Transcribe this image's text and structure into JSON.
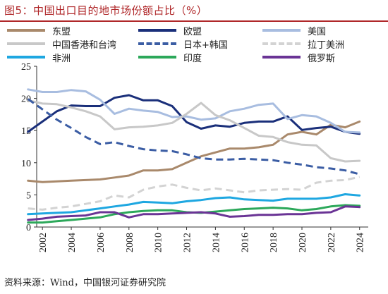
{
  "title": "图5：中国出口目的地市场份额占比（%）",
  "source": "资料来源：Wind，中国银河证券研究院",
  "chart_data": {
    "type": "line",
    "title": "图5：中国出口目的地市场份额占比（%）",
    "xlabel": "",
    "ylabel": "",
    "ylim": [
      0,
      25
    ],
    "yticks": [
      0,
      5,
      10,
      15,
      20,
      25
    ],
    "xticks": [
      2002,
      2004,
      2006,
      2008,
      2010,
      2012,
      2014,
      2016,
      2018,
      2020,
      2022,
      2024
    ],
    "grid": false,
    "legend_position": "top",
    "x": [
      2001,
      2002,
      2003,
      2004,
      2005,
      2006,
      2007,
      2008,
      2009,
      2010,
      2011,
      2012,
      2013,
      2014,
      2015,
      2016,
      2017,
      2018,
      2019,
      2020,
      2021,
      2022,
      2023,
      2024
    ],
    "series": [
      {
        "name": "东盟",
        "color": "#a9896b",
        "dashed": false,
        "values": [
          7.2,
          7.0,
          7.1,
          7.2,
          7.3,
          7.4,
          7.7,
          8.0,
          8.8,
          8.8,
          9.0,
          10.0,
          11.0,
          11.6,
          12.2,
          12.2,
          12.4,
          12.8,
          14.4,
          14.8,
          14.4,
          15.9,
          15.5,
          16.4
        ]
      },
      {
        "name": "欧盟",
        "color": "#1a2f7a",
        "dashed": false,
        "values": [
          14.8,
          16.4,
          18.0,
          18.9,
          18.8,
          18.8,
          20.1,
          20.5,
          19.7,
          19.7,
          18.8,
          16.3,
          15.3,
          15.8,
          15.6,
          16.2,
          16.4,
          16.4,
          17.2,
          15.1,
          15.4,
          15.6,
          14.8,
          14.5
        ]
      },
      {
        "name": "美国",
        "color": "#a8bde0",
        "dashed": false,
        "values": [
          21.4,
          21.0,
          21.0,
          21.3,
          21.1,
          19.8,
          17.6,
          18.4,
          18.1,
          17.9,
          17.1,
          17.2,
          16.7,
          16.9,
          18.0,
          18.4,
          19.0,
          19.2,
          16.8,
          17.4,
          17.2,
          16.2,
          14.8,
          14.7
        ]
      },
      {
        "name": "中国香港和台湾",
        "color": "#c8c8c8",
        "dashed": false,
        "values": [
          19.7,
          19.2,
          19.1,
          18.6,
          18.0,
          17.2,
          15.2,
          15.5,
          15.6,
          15.8,
          16.2,
          17.6,
          19.3,
          17.4,
          16.6,
          15.4,
          14.2,
          14.0,
          13.2,
          12.8,
          12.7,
          10.7,
          10.2,
          10.3
        ]
      },
      {
        "name": "日本+韩国",
        "color": "#3b5da4",
        "dashed": true,
        "values": [
          19.9,
          18.3,
          16.7,
          15.4,
          14.0,
          12.9,
          13.2,
          12.6,
          12.1,
          11.9,
          11.8,
          11.3,
          10.7,
          10.5,
          10.5,
          10.6,
          10.5,
          10.4,
          10.0,
          9.7,
          9.3,
          9.1,
          8.8,
          8.2
        ]
      },
      {
        "name": "拉丁美洲",
        "color": "#d3d3d3",
        "dashed": true,
        "values": [
          2.9,
          2.7,
          3.0,
          3.2,
          3.6,
          4.0,
          4.9,
          4.6,
          5.8,
          6.3,
          6.6,
          6.1,
          5.7,
          6.0,
          5.7,
          5.4,
          5.7,
          5.8,
          5.9,
          5.8,
          6.9,
          7.2,
          7.3,
          7.8
        ]
      },
      {
        "name": "非洲",
        "color": "#1ea7e1",
        "dashed": false,
        "values": [
          2.0,
          2.1,
          2.2,
          2.3,
          2.6,
          2.9,
          3.2,
          3.5,
          3.9,
          3.8,
          3.7,
          4.0,
          4.2,
          4.5,
          4.6,
          4.3,
          4.2,
          4.1,
          4.4,
          4.4,
          4.4,
          4.6,
          5.1,
          4.9
        ]
      },
      {
        "name": "印度",
        "color": "#2ca85a",
        "dashed": false,
        "values": [
          0.7,
          0.7,
          0.9,
          1.1,
          1.3,
          1.5,
          2.0,
          2.3,
          2.5,
          2.6,
          2.6,
          2.3,
          2.2,
          2.4,
          2.6,
          2.8,
          2.9,
          3.0,
          2.9,
          2.6,
          2.8,
          3.2,
          3.4,
          3.3
        ]
      },
      {
        "name": "俄罗斯",
        "color": "#6a3495",
        "dashed": false,
        "values": [
          1.1,
          1.3,
          1.6,
          1.7,
          1.8,
          2.3,
          2.3,
          1.5,
          2.0,
          2.0,
          2.1,
          2.2,
          2.3,
          2.1,
          1.6,
          1.7,
          1.9,
          1.9,
          2.0,
          2.0,
          2.2,
          2.3,
          3.2,
          3.1
        ]
      }
    ]
  }
}
